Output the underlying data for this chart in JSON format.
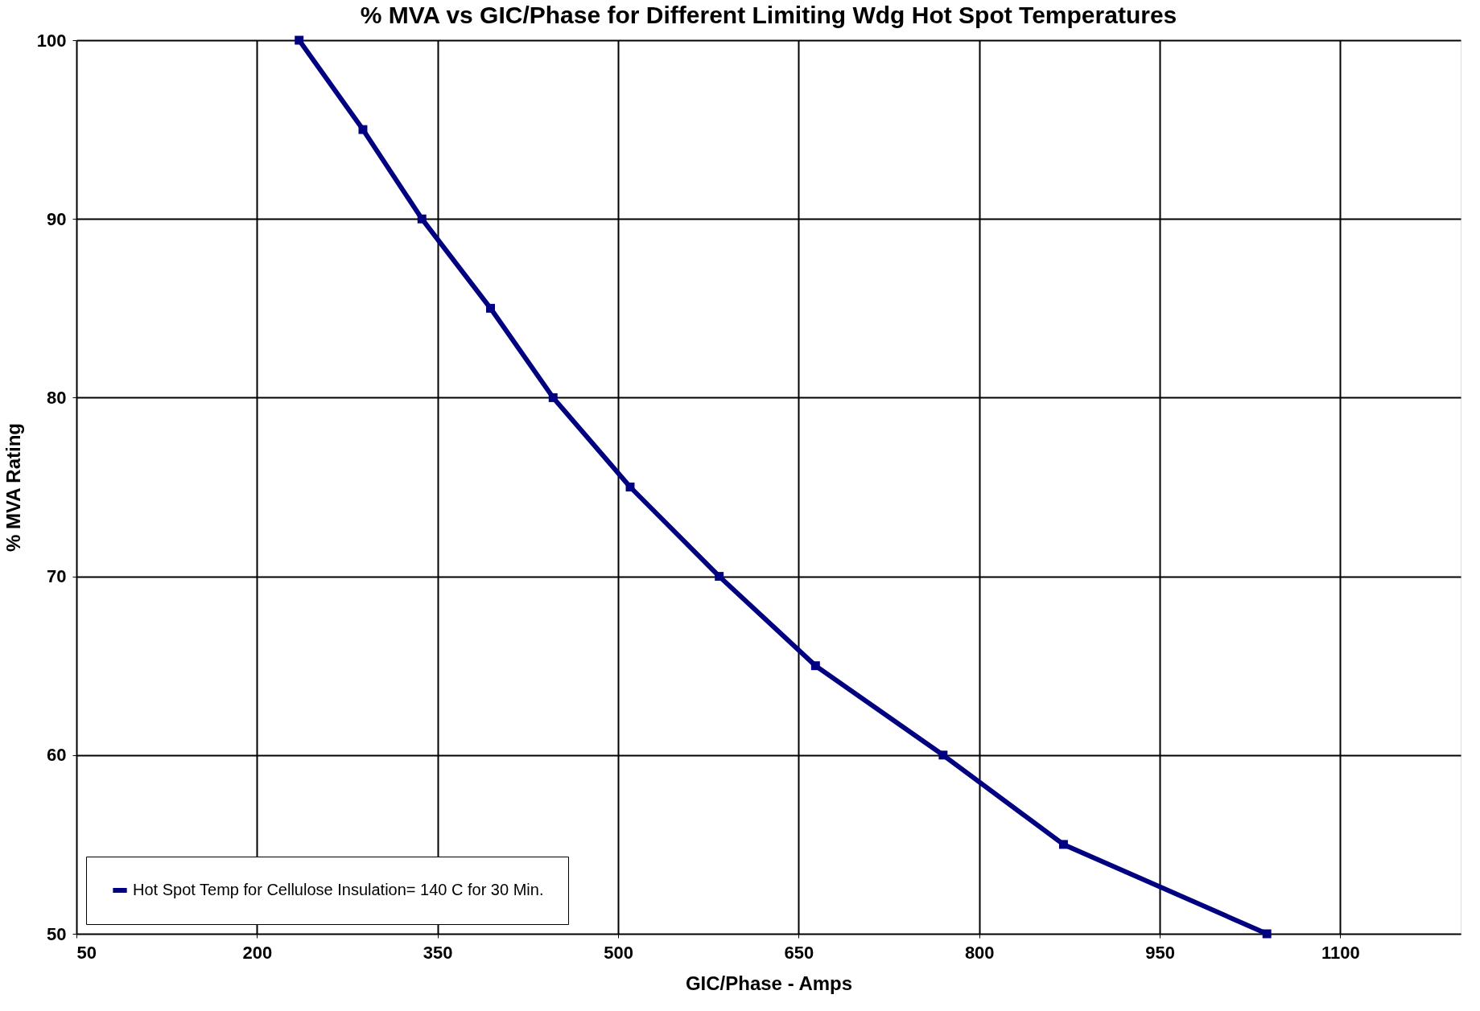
{
  "chart_data": {
    "type": "line",
    "title": "% MVA vs GIC/Phase for Different Limiting Wdg Hot Spot Temperatures",
    "xlabel": "GIC/Phase - Amps",
    "ylabel": "% MVA Rating",
    "x": [
      235,
      288,
      337,
      394,
      446,
      510,
      584,
      664,
      770,
      870,
      1039
    ],
    "series": [
      {
        "name": "Hot Spot Temp for Cellulose Insulation= 140 C for 30 Min.",
        "color": "#000080",
        "values": [
          100,
          95,
          90,
          85,
          80,
          75,
          70,
          65,
          60,
          55,
          50
        ]
      }
    ],
    "xlim": [
      50,
      1200
    ],
    "xticks": [
      50,
      200,
      350,
      500,
      650,
      800,
      950,
      1100
    ],
    "ylim": [
      50,
      100
    ],
    "yticks": [
      50,
      60,
      70,
      80,
      90,
      100
    ],
    "grid": true,
    "legend": "bottom left",
    "marker": "square",
    "line_style": "solid"
  }
}
